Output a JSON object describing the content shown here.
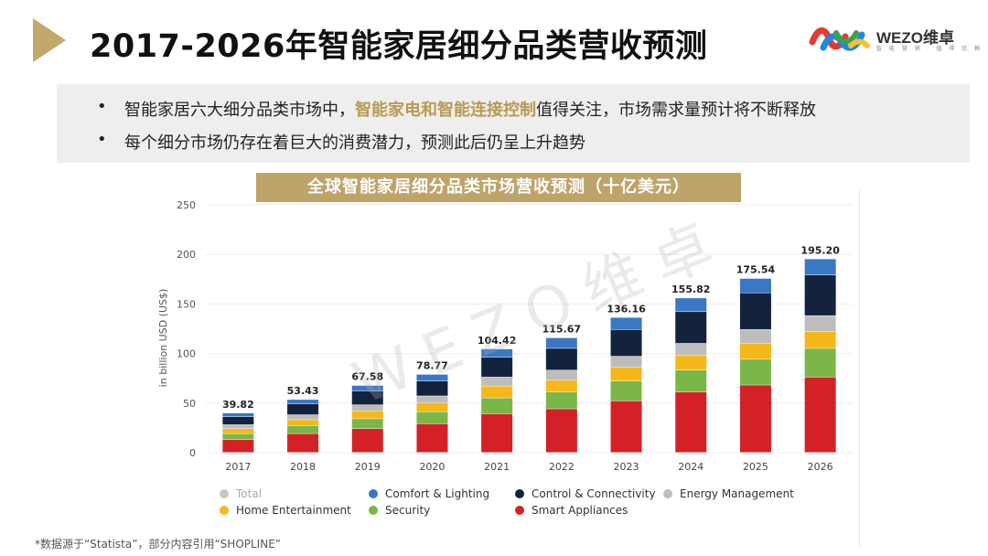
{
  "page": {
    "title": "2017-2026年智能家居细分品类营收预测",
    "logo_text": "WEZO维卓",
    "logo_sub": "智 能 营 销 · 值 得 信 赖",
    "bullets": [
      {
        "pre": "智能家居六大细分品类市场中，",
        "highlight": "智能家电和智能连接控制",
        "post": "值得关注，市场需求量预计将不断释放"
      },
      {
        "pre": "每个细分市场仍存在着巨大的消费潜力，预测此后仍呈上升趋势",
        "highlight": "",
        "post": ""
      }
    ],
    "chart_banner": "全球智能家居细分品类市场营收预测（十亿美元）",
    "watermark": "WEZO维卓",
    "footnote": "*数据源于“Statista”，部分内容引用“SHOPLINE”"
  },
  "colors": {
    "accent": "#c2a86a",
    "smart_appliances": "#d42127",
    "security": "#7ab648",
    "home_entertainment": "#f5b71a",
    "energy_management": "#bdbdbd",
    "control_connectivity": "#13233d",
    "comfort_lighting": "#3a78c4",
    "total": "#c8c8c8"
  },
  "chart_data": {
    "type": "bar",
    "stacked": true,
    "title": "全球智能家居细分品类市场营收预测（十亿美元）",
    "ylabel": "in billion USD (US$)",
    "xlabel": "",
    "ylim": [
      0,
      250
    ],
    "yticks": [
      0,
      50,
      100,
      150,
      200,
      250
    ],
    "categories": [
      "2017",
      "2018",
      "2019",
      "2020",
      "2021",
      "2022",
      "2023",
      "2024",
      "2025",
      "2026"
    ],
    "totals": [
      39.82,
      53.43,
      67.58,
      78.77,
      104.42,
      115.67,
      136.16,
      155.82,
      175.54,
      195.2
    ],
    "total_labels": [
      "39.82",
      "53.43",
      "67.58",
      "78.77",
      "104.42",
      "115.67",
      "136.16",
      "155.82",
      "175.54",
      "195.20"
    ],
    "series": [
      {
        "name": "Smart Appliances",
        "color_key": "smart_appliances",
        "values": [
          13,
          19,
          24,
          29,
          39,
          44,
          52,
          61,
          68,
          76
        ]
      },
      {
        "name": "Security",
        "color_key": "security",
        "values": [
          6,
          8,
          10,
          12,
          16,
          17,
          20,
          22,
          26,
          29
        ]
      },
      {
        "name": "Home Entertainment",
        "color_key": "home_entertainment",
        "values": [
          5,
          6,
          8,
          9,
          12,
          12,
          14,
          15,
          16,
          17
        ]
      },
      {
        "name": "Energy Management",
        "color_key": "energy_management",
        "values": [
          4,
          5,
          6,
          7,
          9,
          10,
          11,
          12,
          14,
          16
        ]
      },
      {
        "name": "Control & Connectivity",
        "color_key": "control_connectivity",
        "values": [
          8,
          11,
          14,
          15,
          20,
          22,
          27,
          32,
          37,
          41
        ]
      },
      {
        "name": "Comfort & Lighting",
        "color_key": "comfort_lighting",
        "values": [
          3.82,
          4.43,
          5.58,
          6.77,
          8.42,
          10.67,
          12.16,
          13.82,
          14.54,
          16.2
        ]
      }
    ],
    "legend": [
      {
        "name": "Total",
        "color_key": "total",
        "muted": true
      },
      {
        "name": "Comfort & Lighting",
        "color_key": "comfort_lighting"
      },
      {
        "name": "Control & Connectivity",
        "color_key": "control_connectivity"
      },
      {
        "name": "Energy Management",
        "color_key": "energy_management"
      },
      {
        "name": "Home Entertainment",
        "color_key": "home_entertainment"
      },
      {
        "name": "Security",
        "color_key": "security"
      },
      {
        "name": "Smart Appliances",
        "color_key": "smart_appliances"
      }
    ]
  }
}
